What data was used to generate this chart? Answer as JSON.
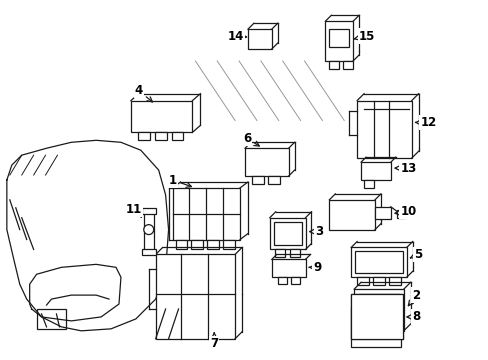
{
  "background_color": "#ffffff",
  "line_color": "#1a1a1a",
  "label_color": "#000000",
  "figsize": [
    4.89,
    3.6
  ],
  "dpi": 100,
  "label_fontsize": 8.5
}
